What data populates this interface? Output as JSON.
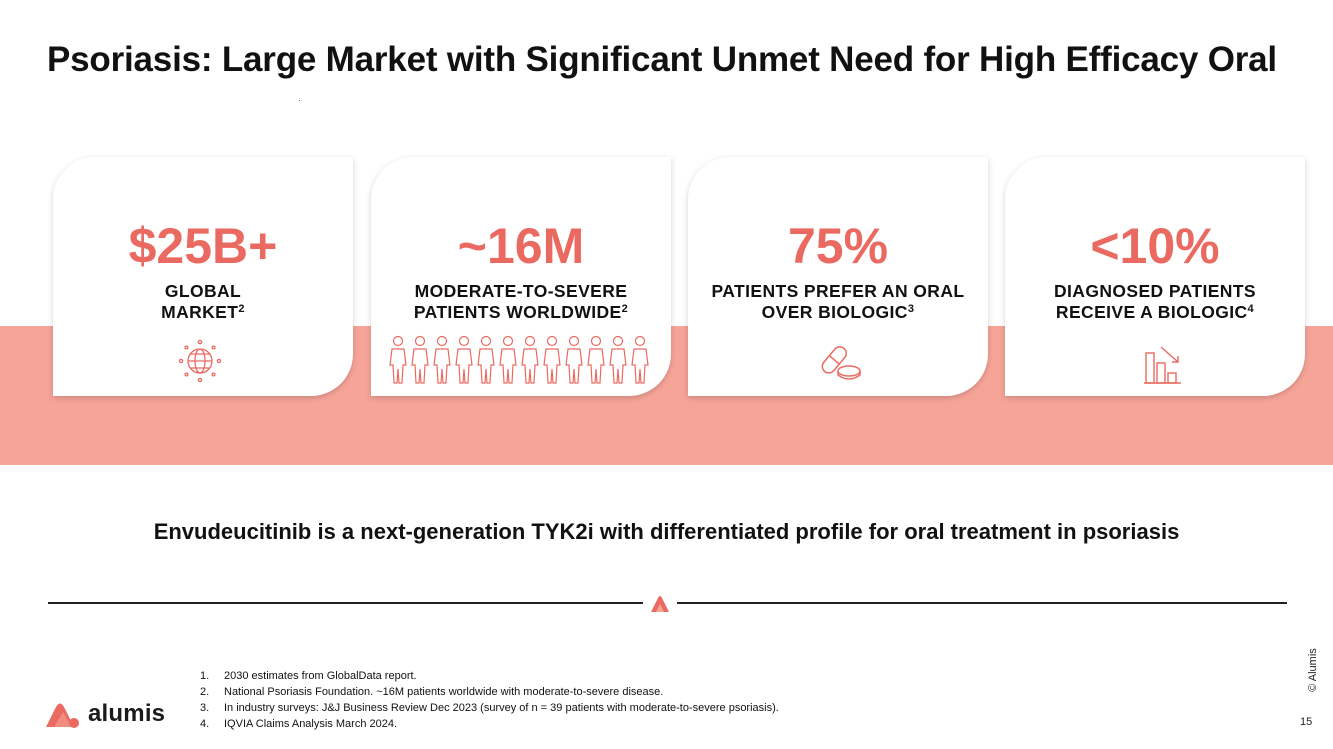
{
  "slide": {
    "title": "Psoriasis: Large Market with Significant Unmet Need for High Efficacy Oral",
    "tagline": "Envudeucitinib is a next-generation TYK2i with differentiated profile for oral treatment in psoriasis",
    "page_number": "15",
    "copyright": "© Alumis"
  },
  "colors": {
    "accent": "#ea6a61",
    "band": "#f7a498",
    "text": "#111111"
  },
  "cards": [
    {
      "stat": "$25B+",
      "label_line1": "GLOBAL",
      "label_line2": "MARKET",
      "sup": "2",
      "icon": "globe-icon"
    },
    {
      "stat": "~16M",
      "label_line1": "MODERATE-TO-SEVERE",
      "label_line2": "PATIENTS WORLDWIDE",
      "sup": "2",
      "icon": "people-group-icon"
    },
    {
      "stat": "75%",
      "label_line1": "PATIENTS PREFER AN ORAL",
      "label_line2": "OVER BIOLOGIC",
      "sup": "3",
      "icon": "pills-icon"
    },
    {
      "stat": "<10%",
      "label_line1": "DIAGNOSED PATIENTS",
      "label_line2": "RECEIVE A BIOLOGIC",
      "sup": "4",
      "icon": "declining-bar-chart-icon"
    }
  ],
  "footnotes": [
    {
      "num": "1.",
      "text": "2030 estimates from GlobalData report."
    },
    {
      "num": "2.",
      "text": "National Psoriasis Foundation. ~16M patients worldwide with moderate-to-severe disease."
    },
    {
      "num": "3.",
      "text": "In industry surveys: J&J Business Review Dec 2023 (survey of n = 39 patients with moderate-to-severe psoriasis)."
    },
    {
      "num": "4.",
      "text": "IQVIA Claims Analysis March 2024."
    }
  ],
  "logo": {
    "text": "alumis",
    "icon": "alumis-logo-icon"
  }
}
